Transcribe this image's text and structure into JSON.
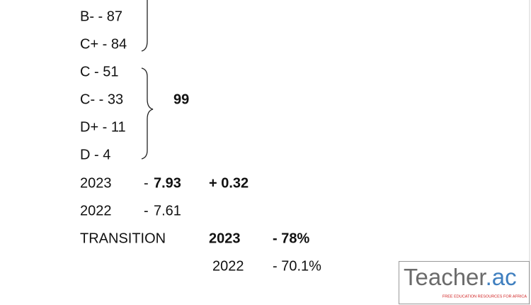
{
  "grades": [
    "B-  -  87",
    "C+ -  84",
    "C  -  51",
    "C-  -  33",
    "D+ - 11",
    "D  -  4"
  ],
  "group_total": "99",
  "mean_scores": [
    {
      "year": "2023",
      "sign": "-",
      "score": "7.93",
      "change": "+ 0.32"
    },
    {
      "year": "2022",
      "sign": "-",
      "score": "7.61"
    }
  ],
  "transition": {
    "label": "TRANSITION",
    "rows": [
      {
        "year": "2023",
        "rate": "- 78%"
      },
      {
        "year": "2022",
        "rate": "- 70.1%"
      }
    ]
  },
  "logo": {
    "name": "Teacher",
    "suffix": ".ac",
    "tagline": "FREE EDUCATION RESOURCES FOR AFRICA"
  }
}
